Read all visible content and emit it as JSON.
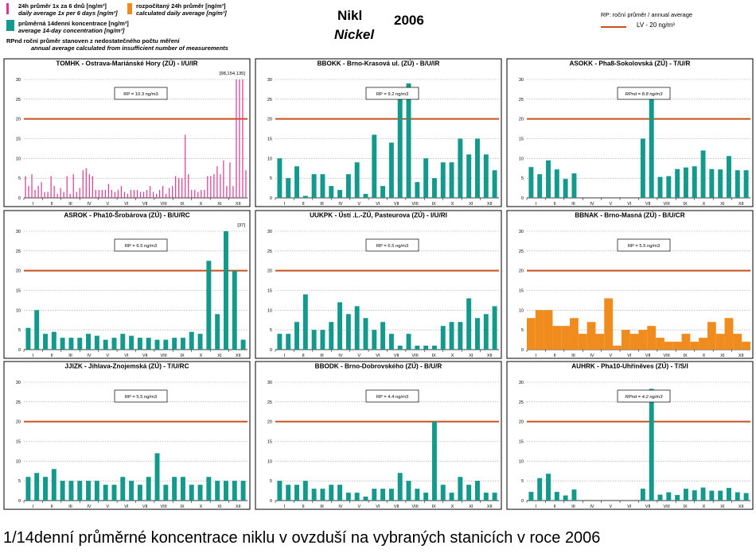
{
  "header": {
    "legend": {
      "daily_cz": "24h průměr 1x za 6 dnů [ng/m³]",
      "daily_en": "daily average 1x per 6 days [ng/m³]",
      "calc_cz": "rozpočítaný 24h průměr [ng/m³]",
      "calc_en": "calculated daily average [ng/m³]",
      "biweekly_cz": "průměrná 14denní koncentrace [ng/m³]",
      "biweekly_en": "average 14-day concentration [ng/m³]",
      "rpnd_cz": "RPnd  roční průměr stanoven z nedostatečného počtu měření",
      "rpnd_en": "annual average calculated from insufficient number of measurements"
    },
    "title_cz": "Nikl",
    "title_en": "Nickel",
    "year": "2006",
    "rp_note": "RP: roční průměr / annual average",
    "lv_label": "LV  - 20 ng/m³"
  },
  "caption": "1/14denní průměrné koncentrace niklu v ovzduší na vybraných stanicích v roce 2006",
  "colors": {
    "daily": "#d63a8e",
    "calculated": "#f08b1e",
    "biweekly": "#139a8c",
    "limit": "#c8501e",
    "grid": "#9a9a9a"
  },
  "chart_data": [
    {
      "type": "bar",
      "title": "TOMHK - Ostrava-Mariánské Hory (ZÚ) - I/U/IR",
      "series_kind": "daily",
      "annual_label": "RP = 10.3 ng/m3",
      "annotation": "[98,154,135]",
      "ylim": [
        0,
        30
      ],
      "yticks": [
        0,
        5,
        10,
        15,
        20,
        25,
        30
      ],
      "limit_value": 20,
      "months": [
        "I",
        "II",
        "III",
        "IV",
        "V",
        "VI",
        "VII",
        "VIII",
        "IX",
        "X",
        "XI",
        "XII"
      ],
      "values": [
        5.5,
        3,
        6,
        2,
        3,
        4,
        1.5,
        1.5,
        5.5,
        3,
        1,
        2.5,
        1.5,
        5.5,
        1,
        6,
        1.5,
        2.5,
        7,
        7.5,
        6,
        5.5,
        2,
        2,
        2,
        2,
        3.5,
        2,
        1.5,
        2,
        3,
        1.5,
        1,
        2,
        2,
        2,
        1.5,
        1.5,
        2,
        3,
        1.5,
        1,
        2,
        3,
        1,
        2.5,
        3,
        5.5,
        5,
        5,
        16,
        6,
        2,
        2,
        1.5,
        2,
        2,
        5.5,
        5.5,
        6,
        8,
        6,
        9.5,
        3,
        9,
        3,
        30,
        30,
        30,
        7
      ]
    },
    {
      "type": "bar",
      "title": "BBOKK - Brno-Krasová ul. (ZÚ) - B/U/IR",
      "series_kind": "biweekly",
      "annual_label": "RP = 9.2 ng/m3",
      "annotation": "",
      "ylim": [
        0,
        30
      ],
      "yticks": [
        0,
        5,
        10,
        15,
        20,
        25,
        30
      ],
      "limit_value": 20,
      "months": [
        "I",
        "II",
        "III",
        "IV",
        "V",
        "VI",
        "VII",
        "VIII",
        "IX",
        "X",
        "XI",
        "XII"
      ],
      "values": [
        10,
        5,
        8,
        0.5,
        6,
        6,
        3,
        2,
        6,
        9,
        1,
        16,
        3,
        14,
        26,
        29,
        4,
        10,
        5,
        9,
        9,
        15,
        11,
        15,
        11,
        7
      ]
    },
    {
      "type": "bar",
      "title": "ASOKK - Pha8-Sokolovská (ZÚ) - T/U/R",
      "series_kind": "biweekly",
      "annual_label": "RPnd = 8.8 ng/m3",
      "annotation": "",
      "ylim": [
        0,
        30
      ],
      "yticks": [
        0,
        5,
        10,
        15,
        20,
        25,
        30
      ],
      "limit_value": 20,
      "months": [
        "I",
        "II",
        "III",
        "IV",
        "V",
        "VI",
        "VII",
        "VIII",
        "IX",
        "X",
        "XI",
        "XII"
      ],
      "values": [
        7.8,
        6,
        9.5,
        7.2,
        4.8,
        6.2,
        null,
        null,
        null,
        null,
        null,
        null,
        null,
        15,
        26.5,
        5.3,
        5.5,
        7.3,
        7.7,
        8,
        12,
        7.3,
        7.2,
        10.6,
        7,
        7
      ]
    },
    {
      "type": "bar",
      "title": "ASROK - Pha10-Šrobárova (ZÚ) - B/U/RC",
      "series_kind": "biweekly",
      "annual_label": "RP = 6.5 ng/m3",
      "annotation": "[37]",
      "ylim": [
        0,
        30
      ],
      "yticks": [
        0,
        5,
        10,
        15,
        20,
        25,
        30
      ],
      "limit_value": 20,
      "months": [
        "I",
        "II",
        "III",
        "IV",
        "V",
        "VI",
        "VII",
        "VIII",
        "IX",
        "X",
        "XI",
        "XII"
      ],
      "values": [
        5.5,
        10,
        4,
        4.5,
        3,
        3,
        3,
        4,
        3.5,
        2.5,
        3,
        4,
        3.5,
        3,
        3,
        2.5,
        2.5,
        3,
        3,
        4.5,
        4,
        22.5,
        9,
        30,
        20,
        2.5
      ]
    },
    {
      "type": "bar",
      "title": "UUKPK - Ústí .L.-ZÚ, Pasteurova (ZÚ) - I/U/RI",
      "series_kind": "biweekly",
      "annual_label": "RP = 6.5 ng/m3",
      "annotation": "",
      "ylim": [
        0,
        30
      ],
      "yticks": [
        0,
        5,
        10,
        15,
        20,
        25,
        30
      ],
      "limit_value": 20,
      "months": [
        "I",
        "II",
        "III",
        "IV",
        "V",
        "VI",
        "VII",
        "VIII",
        "IX",
        "X",
        "XI",
        "XII"
      ],
      "values": [
        4,
        4,
        7,
        14,
        5,
        5,
        7,
        12,
        9,
        11,
        8,
        5,
        7,
        4,
        1,
        4,
        1,
        1,
        1,
        6,
        7,
        7,
        13,
        8,
        9,
        11
      ]
    },
    {
      "type": "bar",
      "title": "BBNAK - Brno-Masná (ZÚ) - B/U/CR",
      "series_kind": "calculated",
      "annual_label": "RP = 5.5 ng/m3",
      "annotation": "",
      "ylim": [
        0,
        30
      ],
      "yticks": [
        0,
        5,
        10,
        15,
        20,
        25,
        30
      ],
      "limit_value": 20,
      "months": [
        "I",
        "II",
        "III",
        "IV",
        "V",
        "VI",
        "VII",
        "VIII",
        "IX",
        "X",
        "XI",
        "XII"
      ],
      "values": [
        8,
        10,
        10,
        6,
        6,
        8,
        4,
        7,
        4,
        13,
        1,
        5,
        4,
        5,
        6,
        3,
        2,
        2,
        4,
        2,
        3,
        7,
        4,
        8,
        4,
        2
      ]
    },
    {
      "type": "bar",
      "title": "JJIZK - Jihlava-Znojemská (ZÚ) - T/U/RC",
      "series_kind": "biweekly",
      "annual_label": "RP = 5.5 ng/m3",
      "annotation": "",
      "ylim": [
        0,
        30
      ],
      "yticks": [
        0,
        5,
        10,
        15,
        20,
        25,
        30
      ],
      "limit_value": 20,
      "months": [
        "I",
        "II",
        "III",
        "IV",
        "V",
        "VI",
        "VII",
        "VIII",
        "IX",
        "X",
        "XI",
        "XII"
      ],
      "values": [
        6,
        7,
        6,
        8,
        5,
        5,
        5,
        5,
        5,
        4,
        4,
        6,
        5,
        4,
        6,
        12,
        4,
        6,
        6,
        4,
        4,
        6,
        5,
        5,
        5,
        5
      ]
    },
    {
      "type": "bar",
      "title": "BBODK - Brno-Dobrovského (ZÚ) - B/U/R",
      "series_kind": "biweekly",
      "annual_label": "RP = 4.4 ng/m3",
      "annotation": "",
      "ylim": [
        0,
        30
      ],
      "yticks": [
        0,
        5,
        10,
        15,
        20,
        25,
        30
      ],
      "limit_value": 20,
      "months": [
        "I",
        "II",
        "III",
        "IV",
        "V",
        "VI",
        "VII",
        "VIII",
        "IX",
        "X",
        "XI",
        "XII"
      ],
      "values": [
        5,
        4,
        4,
        5,
        3,
        3,
        4,
        4,
        2,
        2,
        1,
        3,
        3,
        3,
        7,
        5,
        3,
        2,
        20,
        4,
        2,
        6,
        4,
        5,
        2,
        2
      ]
    },
    {
      "type": "bar",
      "title": "AUHRK - Pha10-Uhříněves (ZÚ) - T/S/I",
      "series_kind": "biweekly",
      "annual_label": "RPnd = 4.2 ng/m3",
      "annotation": "",
      "ylim": [
        0,
        30
      ],
      "yticks": [
        0,
        5,
        10,
        15,
        20,
        25,
        30
      ],
      "limit_value": 20,
      "months": [
        "I",
        "II",
        "III",
        "IV",
        "V",
        "VI",
        "VII",
        "VIII",
        "IX",
        "X",
        "XI",
        "XII"
      ],
      "values": [
        2.2,
        5.7,
        6.8,
        2.2,
        1.3,
        2.8,
        null,
        null,
        null,
        null,
        null,
        null,
        null,
        3,
        28.3,
        1.5,
        2.1,
        1.4,
        3,
        2.6,
        3.3,
        2.5,
        2.5,
        3.2,
        2.1,
        1.9
      ]
    }
  ]
}
